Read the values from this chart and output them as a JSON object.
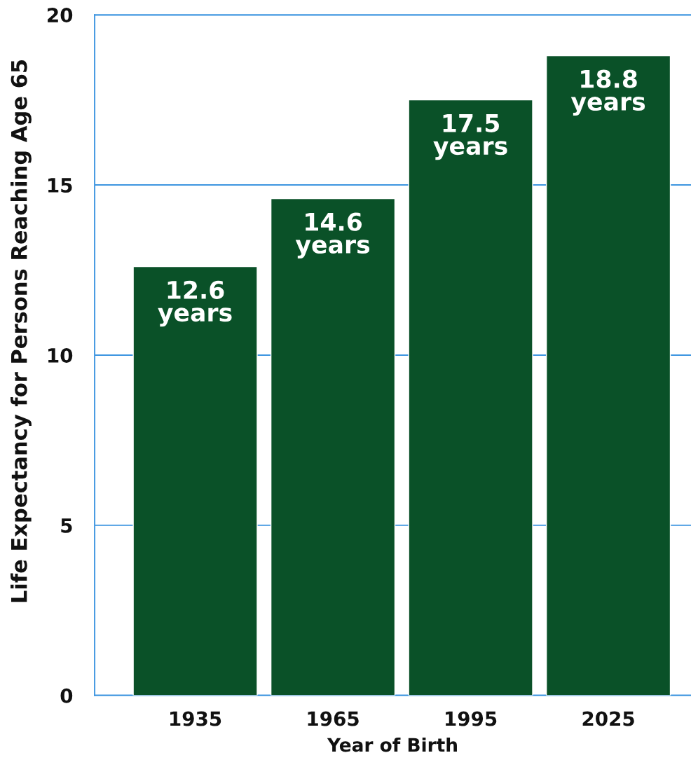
{
  "chart_data": {
    "type": "bar",
    "xlabel": "Year of Birth",
    "ylabel": "Life Expectancy for Persons Reaching Age 65",
    "categories": [
      "1935",
      "1965",
      "1995",
      "2025"
    ],
    "values": [
      12.6,
      14.6,
      17.5,
      18.8
    ],
    "color": "#0a5128",
    "value_labels": [
      "12.6\nyears",
      "14.6\nyears",
      "17.5\nyears",
      "18.8\nyears"
    ],
    "ylim": [
      0,
      20
    ],
    "yticks": [
      0,
      5,
      10,
      15,
      20
    ],
    "grid": "y"
  }
}
